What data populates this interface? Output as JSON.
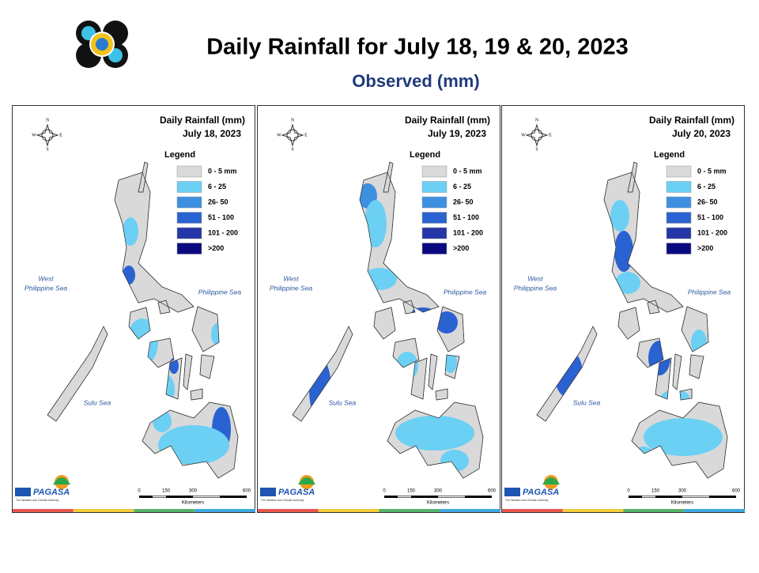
{
  "header": {
    "title": "Daily Rainfall for July 18, 19 & 20, 2023",
    "subtitle": "Observed (mm)"
  },
  "panels": [
    {
      "title": "Daily Rainfall (mm)",
      "date": "July 18, 2023",
      "legend_title": "Legend",
      "legend": [
        {
          "label": "0 - 5 mm",
          "color": "#d9d9d9"
        },
        {
          "label": "6 - 25",
          "color": "#6bd0f4"
        },
        {
          "label": "26- 50",
          "color": "#3d8fe0"
        },
        {
          "label": "51 - 100",
          "color": "#2b62d2"
        },
        {
          "label": "101 - 200",
          "color": "#2436a8"
        },
        {
          "label": ">200",
          "color": "#0a0a80"
        }
      ],
      "seas": [
        "West Philippine Sea",
        "Philippine Sea",
        "Sulu Sea"
      ],
      "compass": [
        "N",
        "E",
        "S",
        "W"
      ],
      "scale_ticks": [
        "0",
        "150",
        "300",
        "600"
      ],
      "scale_unit": "Kilometers",
      "agency": "PAGASA",
      "agency_tagline": "The Weather and Climate Authority"
    },
    {
      "title": "Daily Rainfall (mm)",
      "date": "July 19, 2023",
      "legend_title": "Legend",
      "legend": [
        {
          "label": "0 - 5 mm",
          "color": "#d9d9d9"
        },
        {
          "label": "6 - 25",
          "color": "#6bd0f4"
        },
        {
          "label": "26- 50",
          "color": "#3d8fe0"
        },
        {
          "label": "51 - 100",
          "color": "#2b62d2"
        },
        {
          "label": "101 - 200",
          "color": "#2436a8"
        },
        {
          "label": ">200",
          "color": "#0a0a80"
        }
      ],
      "seas": [
        "West Philippine Sea",
        "Philippine Sea",
        "Sulu Sea"
      ],
      "compass": [
        "N",
        "E",
        "S",
        "W"
      ],
      "scale_ticks": [
        "0",
        "150",
        "300",
        "600"
      ],
      "scale_unit": "Kilometers",
      "agency": "PAGASA",
      "agency_tagline": "The Weather and Climate Authority"
    },
    {
      "title": "Daily Rainfall (mm)",
      "date": "July 20, 2023",
      "legend_title": "Legend",
      "legend": [
        {
          "label": "0 - 5 mm",
          "color": "#d9d9d9"
        },
        {
          "label": "6 - 25",
          "color": "#6bd0f4"
        },
        {
          "label": "26- 50",
          "color": "#3d8fe0"
        },
        {
          "label": "51 - 100",
          "color": "#2b62d2"
        },
        {
          "label": "101 - 200",
          "color": "#2436a8"
        },
        {
          "label": ">200",
          "color": "#0a0a80"
        }
      ],
      "seas": [
        "West Philippine Sea",
        "Philippine Sea",
        "Sulu Sea"
      ],
      "compass": [
        "N",
        "E",
        "S",
        "W"
      ],
      "scale_ticks": [
        "0",
        "150",
        "300",
        "600"
      ],
      "scale_unit": "Kilometers",
      "agency": "PAGASA",
      "agency_tagline": "The Weather and Climate Authority"
    }
  ]
}
